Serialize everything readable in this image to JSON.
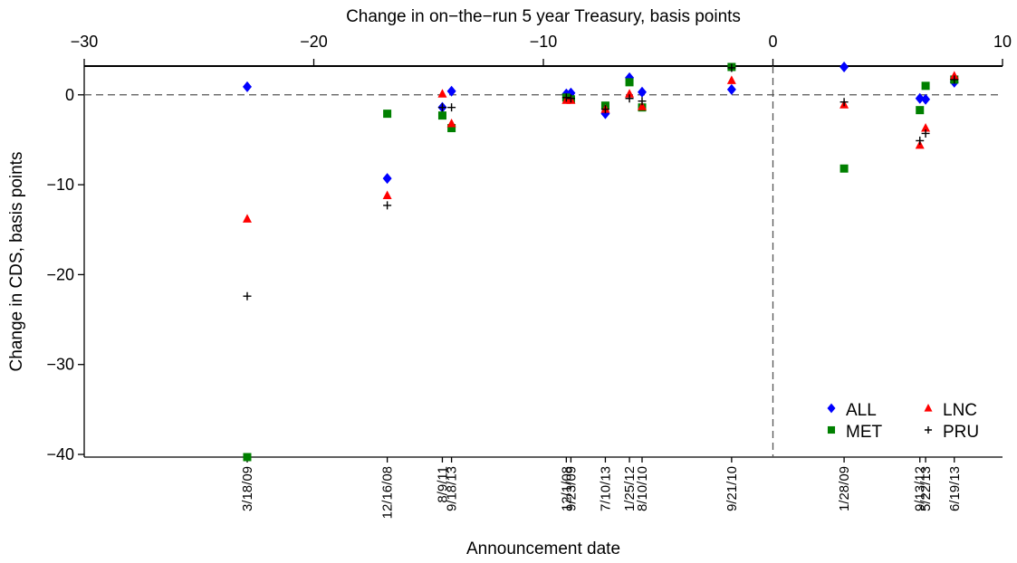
{
  "chart_data": {
    "type": "scatter",
    "x_axis_label": "Change in on−the−run 5 year Treasury, basis points",
    "y_axis_label": "Change in CDS, basis points",
    "date_axis_label": "Announcement date",
    "x": [
      -22.9,
      -16.8,
      -14.4,
      -14.0,
      -9.0,
      -8.8,
      -7.3,
      -6.25,
      -5.7,
      -1.8,
      3.1,
      6.4,
      6.65,
      7.9
    ],
    "dates": [
      "3/18/09",
      "12/16/08",
      "8/9/11",
      "9/18/13",
      "12/1/08",
      "9/23/09",
      "7/10/13",
      "1/25/12",
      "8/10/10",
      "9/21/10",
      "1/28/09",
      "9/13/12",
      "5/22/13",
      "6/19/13"
    ],
    "series": [
      {
        "name": "ALL",
        "color": "#0000ff",
        "marker": "diamond",
        "values": [
          0.9,
          -9.3,
          -1.4,
          0.4,
          0.1,
          0.2,
          -2.1,
          1.9,
          0.3,
          0.6,
          3.1,
          -0.4,
          -0.5,
          1.4
        ]
      },
      {
        "name": "MET",
        "color": "#008000",
        "marker": "square",
        "values": [
          -40.3,
          -2.1,
          -2.3,
          -3.7,
          -0.3,
          -0.5,
          -1.2,
          1.4,
          -1.4,
          3.1,
          -8.2,
          -1.7,
          1.0,
          1.7
        ]
      },
      {
        "name": "LNC",
        "color": "#ff0000",
        "marker": "triangle",
        "values": [
          -13.8,
          -11.2,
          0.1,
          -3.2,
          -0.6,
          -0.6,
          -1.6,
          0.1,
          -1.3,
          1.6,
          -1.1,
          -5.6,
          -3.7,
          2.1
        ]
      },
      {
        "name": "PRU",
        "color": "#000000",
        "marker": "plus",
        "values": [
          -22.4,
          -12.3,
          -1.4,
          -1.4,
          -0.3,
          -0.4,
          -1.6,
          -0.4,
          -0.7,
          3.0,
          -0.8,
          -5.1,
          -4.3,
          1.7
        ]
      }
    ],
    "xlim": [
      -30,
      10
    ],
    "xticks": [
      {
        "value": -30,
        "label": "−30"
      },
      {
        "value": -20,
        "label": "−20"
      },
      {
        "value": -10,
        "label": "−10"
      },
      0,
      10
    ],
    "ylim": [
      -40.3,
      3.2
    ],
    "yticks": [
      {
        "value": -40,
        "label": "−40"
      },
      {
        "value": -30,
        "label": "−30"
      },
      {
        "value": -20,
        "label": "−20"
      },
      {
        "value": -10,
        "label": "−10"
      },
      0
    ],
    "hline": 0,
    "vline": 0,
    "legend_position": "bottom right"
  }
}
